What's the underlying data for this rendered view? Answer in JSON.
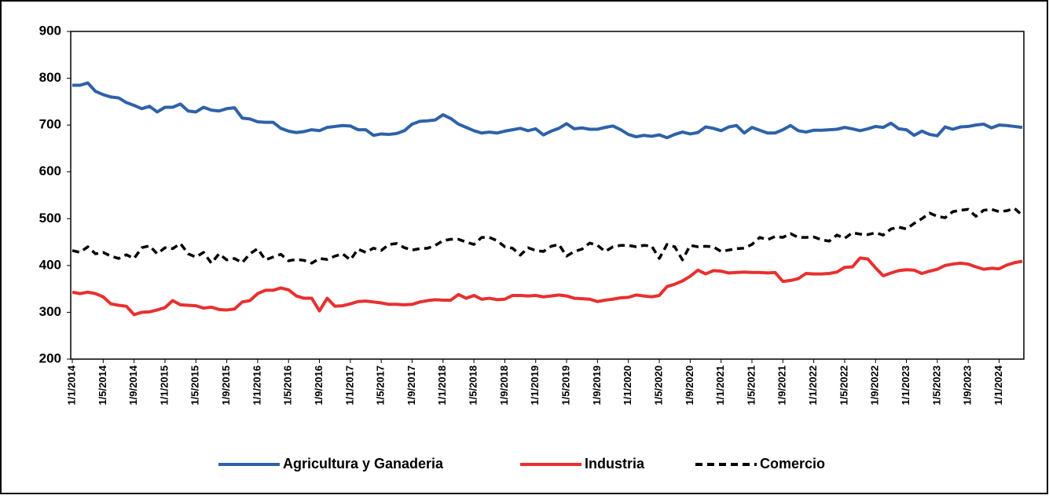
{
  "chart_data": {
    "type": "line",
    "categories": [
      "1/1/2014",
      null,
      null,
      null,
      "1/5/2014",
      null,
      null,
      null,
      "1/9/2014",
      null,
      null,
      null,
      "1/1/2015",
      null,
      null,
      null,
      "1/5/2015",
      null,
      null,
      null,
      "1/9/2015",
      null,
      null,
      null,
      "1/1/2016",
      null,
      null,
      null,
      "1/5/2016",
      null,
      null,
      null,
      "1/9/2016",
      null,
      null,
      null,
      "1/1/2017",
      null,
      null,
      null,
      "1/5/2017",
      null,
      null,
      null,
      "1/9/2017",
      null,
      null,
      null,
      "1/1/2018",
      null,
      null,
      null,
      "1/5/2018",
      null,
      null,
      null,
      "1/9/2018",
      null,
      null,
      null,
      "1/1/2019",
      null,
      null,
      null,
      "1/5/2019",
      null,
      null,
      null,
      "1/9/2019",
      null,
      null,
      null,
      "1/1/2020",
      null,
      null,
      null,
      "1/5/2020",
      null,
      null,
      null,
      "1/9/2020",
      null,
      null,
      null,
      "1/1/2021",
      null,
      null,
      null,
      "1/5/2021",
      null,
      null,
      null,
      "1/9/2021",
      null,
      null,
      null,
      "1/1/2022",
      null,
      null,
      null,
      "1/5/2022",
      null,
      null,
      null,
      "1/9/2022",
      null,
      null,
      null,
      "1/1/2023",
      null,
      null,
      null,
      "1/5/2023",
      null,
      null,
      null,
      "1/9/2023",
      null,
      null,
      null,
      "1/1/2024",
      null,
      null,
      null
    ],
    "series": [
      {
        "name": "Agricultura y Ganaderia",
        "color": "#2e62a8",
        "line_style": "solid",
        "values": [
          785,
          785,
          790,
          772,
          765,
          760,
          758,
          748,
          742,
          735,
          740,
          728,
          738,
          738,
          745,
          730,
          728,
          738,
          732,
          730,
          735,
          737,
          715,
          713,
          707,
          706,
          706,
          693,
          687,
          684,
          686,
          690,
          688,
          695,
          697,
          699,
          698,
          690,
          690,
          678,
          681,
          680,
          682,
          688,
          702,
          708,
          709,
          711,
          722,
          714,
          702,
          695,
          688,
          683,
          685,
          683,
          687,
          690,
          693,
          688,
          692,
          679,
          687,
          693,
          703,
          692,
          694,
          691,
          691,
          695,
          698,
          690,
          680,
          675,
          678,
          676,
          679,
          673,
          680,
          685,
          681,
          684,
          696,
          693,
          688,
          696,
          699,
          683,
          695,
          689,
          683,
          683,
          690,
          699,
          688,
          685,
          689,
          689,
          690,
          691,
          695,
          692,
          688,
          692,
          697,
          695,
          704,
          692,
          690,
          678,
          687,
          680,
          677,
          696,
          691,
          696,
          697,
          700,
          702,
          694,
          700,
          699,
          697,
          695
        ]
      },
      {
        "name": "Industria",
        "color": "#e8302f",
        "line_style": "solid",
        "values": [
          343,
          340,
          343,
          340,
          333,
          318,
          315,
          313,
          295,
          300,
          301,
          305,
          310,
          325,
          316,
          315,
          314,
          309,
          311,
          306,
          305,
          307,
          322,
          325,
          340,
          347,
          347,
          352,
          348,
          335,
          330,
          330,
          303,
          330,
          313,
          314,
          318,
          323,
          324,
          322,
          320,
          317,
          317,
          316,
          317,
          322,
          325,
          327,
          326,
          326,
          338,
          330,
          336,
          328,
          330,
          327,
          328,
          336,
          336,
          335,
          336,
          333,
          335,
          337,
          335,
          330,
          329,
          328,
          323,
          326,
          328,
          331,
          332,
          337,
          335,
          333,
          336,
          355,
          360,
          367,
          377,
          390,
          382,
          389,
          388,
          384,
          385,
          386,
          385,
          385,
          384,
          385,
          366,
          368,
          372,
          383,
          382,
          382,
          383,
          386,
          396,
          397,
          416,
          414,
          395,
          378,
          384,
          389,
          391,
          390,
          383,
          388,
          392,
          400,
          403,
          405,
          403,
          397,
          392,
          394,
          393,
          401,
          406,
          409
        ]
      },
      {
        "name": "Comercio",
        "color": "#000000",
        "line_style": "dashed",
        "values": [
          432,
          428,
          440,
          425,
          428,
          420,
          415,
          423,
          415,
          438,
          442,
          425,
          438,
          436,
          447,
          425,
          418,
          428,
          405,
          425,
          412,
          415,
          406,
          425,
          436,
          412,
          418,
          424,
          410,
          413,
          411,
          405,
          415,
          413,
          420,
          425,
          412,
          435,
          428,
          437,
          432,
          445,
          447,
          438,
          433,
          436,
          437,
          443,
          453,
          456,
          456,
          450,
          445,
          460,
          460,
          453,
          440,
          437,
          422,
          438,
          432,
          430,
          441,
          445,
          420,
          430,
          435,
          448,
          443,
          430,
          440,
          443,
          443,
          440,
          443,
          442,
          415,
          445,
          440,
          412,
          443,
          440,
          441,
          440,
          430,
          433,
          436,
          437,
          445,
          460,
          455,
          462,
          460,
          468,
          460,
          460,
          461,
          455,
          452,
          465,
          458,
          470,
          467,
          466,
          470,
          465,
          478,
          482,
          478,
          490,
          500,
          512,
          505,
          502,
          515,
          518,
          520,
          505,
          518,
          520,
          515,
          517,
          522,
          507
        ]
      }
    ],
    "ylim": [
      200,
      900
    ],
    "yticks": [
      200,
      300,
      400,
      500,
      600,
      700,
      800,
      900
    ],
    "grid": false,
    "legend": "bottom"
  }
}
